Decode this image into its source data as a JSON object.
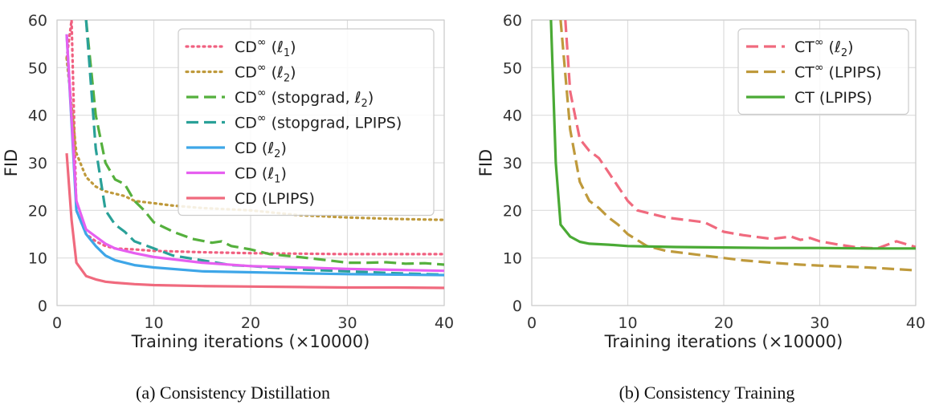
{
  "chart_data": [
    {
      "type": "line",
      "caption": "(a) Consistency Distillation",
      "xlabel": "Training iterations (×10000)",
      "ylabel": "FID",
      "xlim": [
        0,
        40
      ],
      "ylim": [
        0,
        60
      ],
      "xticks": [
        "0",
        "10",
        "20",
        "30",
        "40"
      ],
      "yticks": [
        "0",
        "10",
        "20",
        "30",
        "40",
        "50",
        "60"
      ],
      "grid": true,
      "legend_position": "top-right",
      "series": [
        {
          "name": "CD∞ (ℓ1)",
          "label_main": "CD",
          "label_arg": "(ℓ",
          "label_sub": "1",
          "label_end": ")",
          "color": "#f06080",
          "dash": "dotted",
          "x": [
            1,
            1.5,
            2,
            3,
            4,
            5,
            6,
            8,
            10,
            15,
            20,
            25,
            30,
            35,
            40
          ],
          "y": [
            52,
            60,
            20,
            15,
            13.5,
            12.5,
            12,
            11.8,
            11.5,
            11.2,
            11,
            10.9,
            10.8,
            10.8,
            10.8
          ]
        },
        {
          "name": "CD∞ (ℓ2)",
          "label_main": "CD",
          "label_arg": "(ℓ",
          "label_sub": "2",
          "label_end": ")",
          "color": "#bf9a3c",
          "dash": "dotted",
          "x": [
            1,
            2,
            3,
            4,
            5,
            6,
            7,
            8,
            10,
            12,
            15,
            20,
            25,
            30,
            35,
            40
          ],
          "y": [
            52,
            32,
            27,
            25,
            24,
            23.5,
            23,
            22,
            21.5,
            21,
            20.5,
            20,
            19,
            18.5,
            18.2,
            18
          ]
        },
        {
          "name": "CD∞ (stopgrad, ℓ2)",
          "label_main": "CD",
          "label_arg": "(stopgrad, ℓ",
          "label_sub": "2",
          "label_end": ")",
          "color": "#55b03d",
          "dash": "dashed",
          "x": [
            3,
            4,
            5,
            6,
            7,
            8,
            9,
            10,
            12,
            14,
            16,
            17,
            18,
            20,
            22,
            25,
            28,
            30,
            32,
            34,
            36,
            38,
            40
          ],
          "y": [
            60,
            40,
            30,
            26.5,
            25.5,
            22,
            20,
            17.5,
            15.5,
            14,
            13.2,
            13.5,
            12.5,
            11.8,
            10.8,
            10.2,
            9.5,
            9,
            9,
            9.1,
            8.8,
            8.9,
            8.6
          ]
        },
        {
          "name": "CD∞ (stopgrad, LPIPS)",
          "label_main": "CD",
          "label_arg": "(stopgrad, LPIPS)",
          "label_sub": "",
          "label_end": "",
          "color": "#2aa198",
          "dash": "dashed",
          "x": [
            3,
            4,
            5,
            6,
            7,
            8,
            10,
            12,
            15,
            18,
            20,
            22,
            25,
            30,
            35,
            38,
            40
          ],
          "y": [
            60,
            33,
            20,
            17,
            15.5,
            13.5,
            12,
            10.5,
            9.5,
            8.5,
            8.3,
            8,
            7.6,
            7.2,
            6.8,
            6.6,
            6.5
          ]
        },
        {
          "name": "CD (ℓ2)",
          "label_main": "CD",
          "label_arg": "(ℓ",
          "label_sub": "2",
          "label_end": ")",
          "color": "#3ea6e8",
          "dash": "solid",
          "x": [
            1,
            2,
            3,
            4,
            5,
            6,
            8,
            10,
            15,
            20,
            25,
            30,
            35,
            40
          ],
          "y": [
            57,
            20,
            15,
            12.5,
            10.5,
            9.5,
            8.5,
            8,
            7.2,
            7,
            6.8,
            6.6,
            6.5,
            6.4
          ]
        },
        {
          "name": "CD (ℓ1)",
          "label_main": "CD",
          "label_arg": "(ℓ",
          "label_sub": "1",
          "label_end": ")",
          "color": "#e65ff0",
          "dash": "solid",
          "x": [
            1,
            2,
            3,
            4,
            5,
            6,
            8,
            10,
            15,
            20,
            25,
            30,
            35,
            40
          ],
          "y": [
            57,
            22,
            16,
            14.5,
            13,
            12,
            11,
            10.2,
            9,
            8.3,
            8,
            7.7,
            7.5,
            7.3
          ]
        },
        {
          "name": "CD (LPIPS)",
          "label_main": "CD",
          "label_arg": "(LPIPS)",
          "label_sub": "",
          "label_end": "",
          "color": "#f06a7e",
          "dash": "solid",
          "x": [
            1,
            1.5,
            2,
            3,
            4,
            5,
            6,
            8,
            10,
            15,
            20,
            25,
            30,
            35,
            40
          ],
          "y": [
            32,
            18,
            9,
            6.2,
            5.5,
            5,
            4.8,
            4.5,
            4.3,
            4.1,
            4,
            3.9,
            3.8,
            3.8,
            3.7
          ]
        }
      ],
      "superscript_flags": [
        true,
        true,
        true,
        true,
        false,
        false,
        false
      ]
    },
    {
      "type": "line",
      "caption": "(b) Consistency Training",
      "xlabel": "Training iterations (×10000)",
      "ylabel": "FID",
      "xlim": [
        0,
        40
      ],
      "ylim": [
        0,
        60
      ],
      "xticks": [
        "0",
        "10",
        "20",
        "30",
        "40"
      ],
      "yticks": [
        "0",
        "10",
        "20",
        "30",
        "40",
        "50",
        "60"
      ],
      "grid": true,
      "legend_position": "top-right",
      "series": [
        {
          "name": "CT∞ (ℓ2)",
          "label_main": "CT",
          "label_arg": "(ℓ",
          "label_sub": "2",
          "label_end": ")",
          "color": "#f06a7e",
          "dash": "dashed",
          "x": [
            3.5,
            4,
            5,
            6,
            7,
            8,
            9,
            10,
            11,
            12,
            14,
            16,
            18,
            20,
            22,
            25,
            27,
            28,
            29,
            30,
            32,
            34,
            36,
            38,
            40
          ],
          "y": [
            60,
            45,
            35,
            32.5,
            31,
            28,
            25,
            22,
            20,
            19.5,
            18.5,
            18,
            17.5,
            15.5,
            14.8,
            14,
            14.5,
            13.8,
            14.2,
            13.5,
            12.8,
            12.2,
            12,
            13.5,
            12.3
          ]
        },
        {
          "name": "CT∞ (LPIPS)",
          "label_main": "CT",
          "label_arg": "(LPIPS)",
          "label_sub": "",
          "label_end": "",
          "color": "#bf9a3c",
          "dash": "dashed",
          "x": [
            3,
            4,
            5,
            6,
            7,
            8,
            9,
            10,
            12,
            14,
            16,
            18,
            20,
            22,
            25,
            28,
            30,
            35,
            40
          ],
          "y": [
            60,
            37,
            26,
            22,
            20.5,
            18.5,
            17,
            15,
            12.5,
            11.5,
            11,
            10.5,
            10,
            9.5,
            9,
            8.6,
            8.4,
            8,
            7.4
          ]
        },
        {
          "name": "CT (LPIPS)",
          "label_main": "CT",
          "label_arg": "(LPIPS)",
          "label_sub": "",
          "label_end": "",
          "color": "#4aaa35",
          "dash": "solid",
          "x": [
            2,
            2.5,
            3,
            4,
            5,
            6,
            8,
            10,
            15,
            20,
            25,
            30,
            35,
            40
          ],
          "y": [
            60,
            30,
            17,
            14.5,
            13.4,
            13,
            12.8,
            12.5,
            12.3,
            12.2,
            12.1,
            12.1,
            12,
            12
          ]
        }
      ],
      "superscript_flags": [
        true,
        true,
        false
      ]
    }
  ]
}
